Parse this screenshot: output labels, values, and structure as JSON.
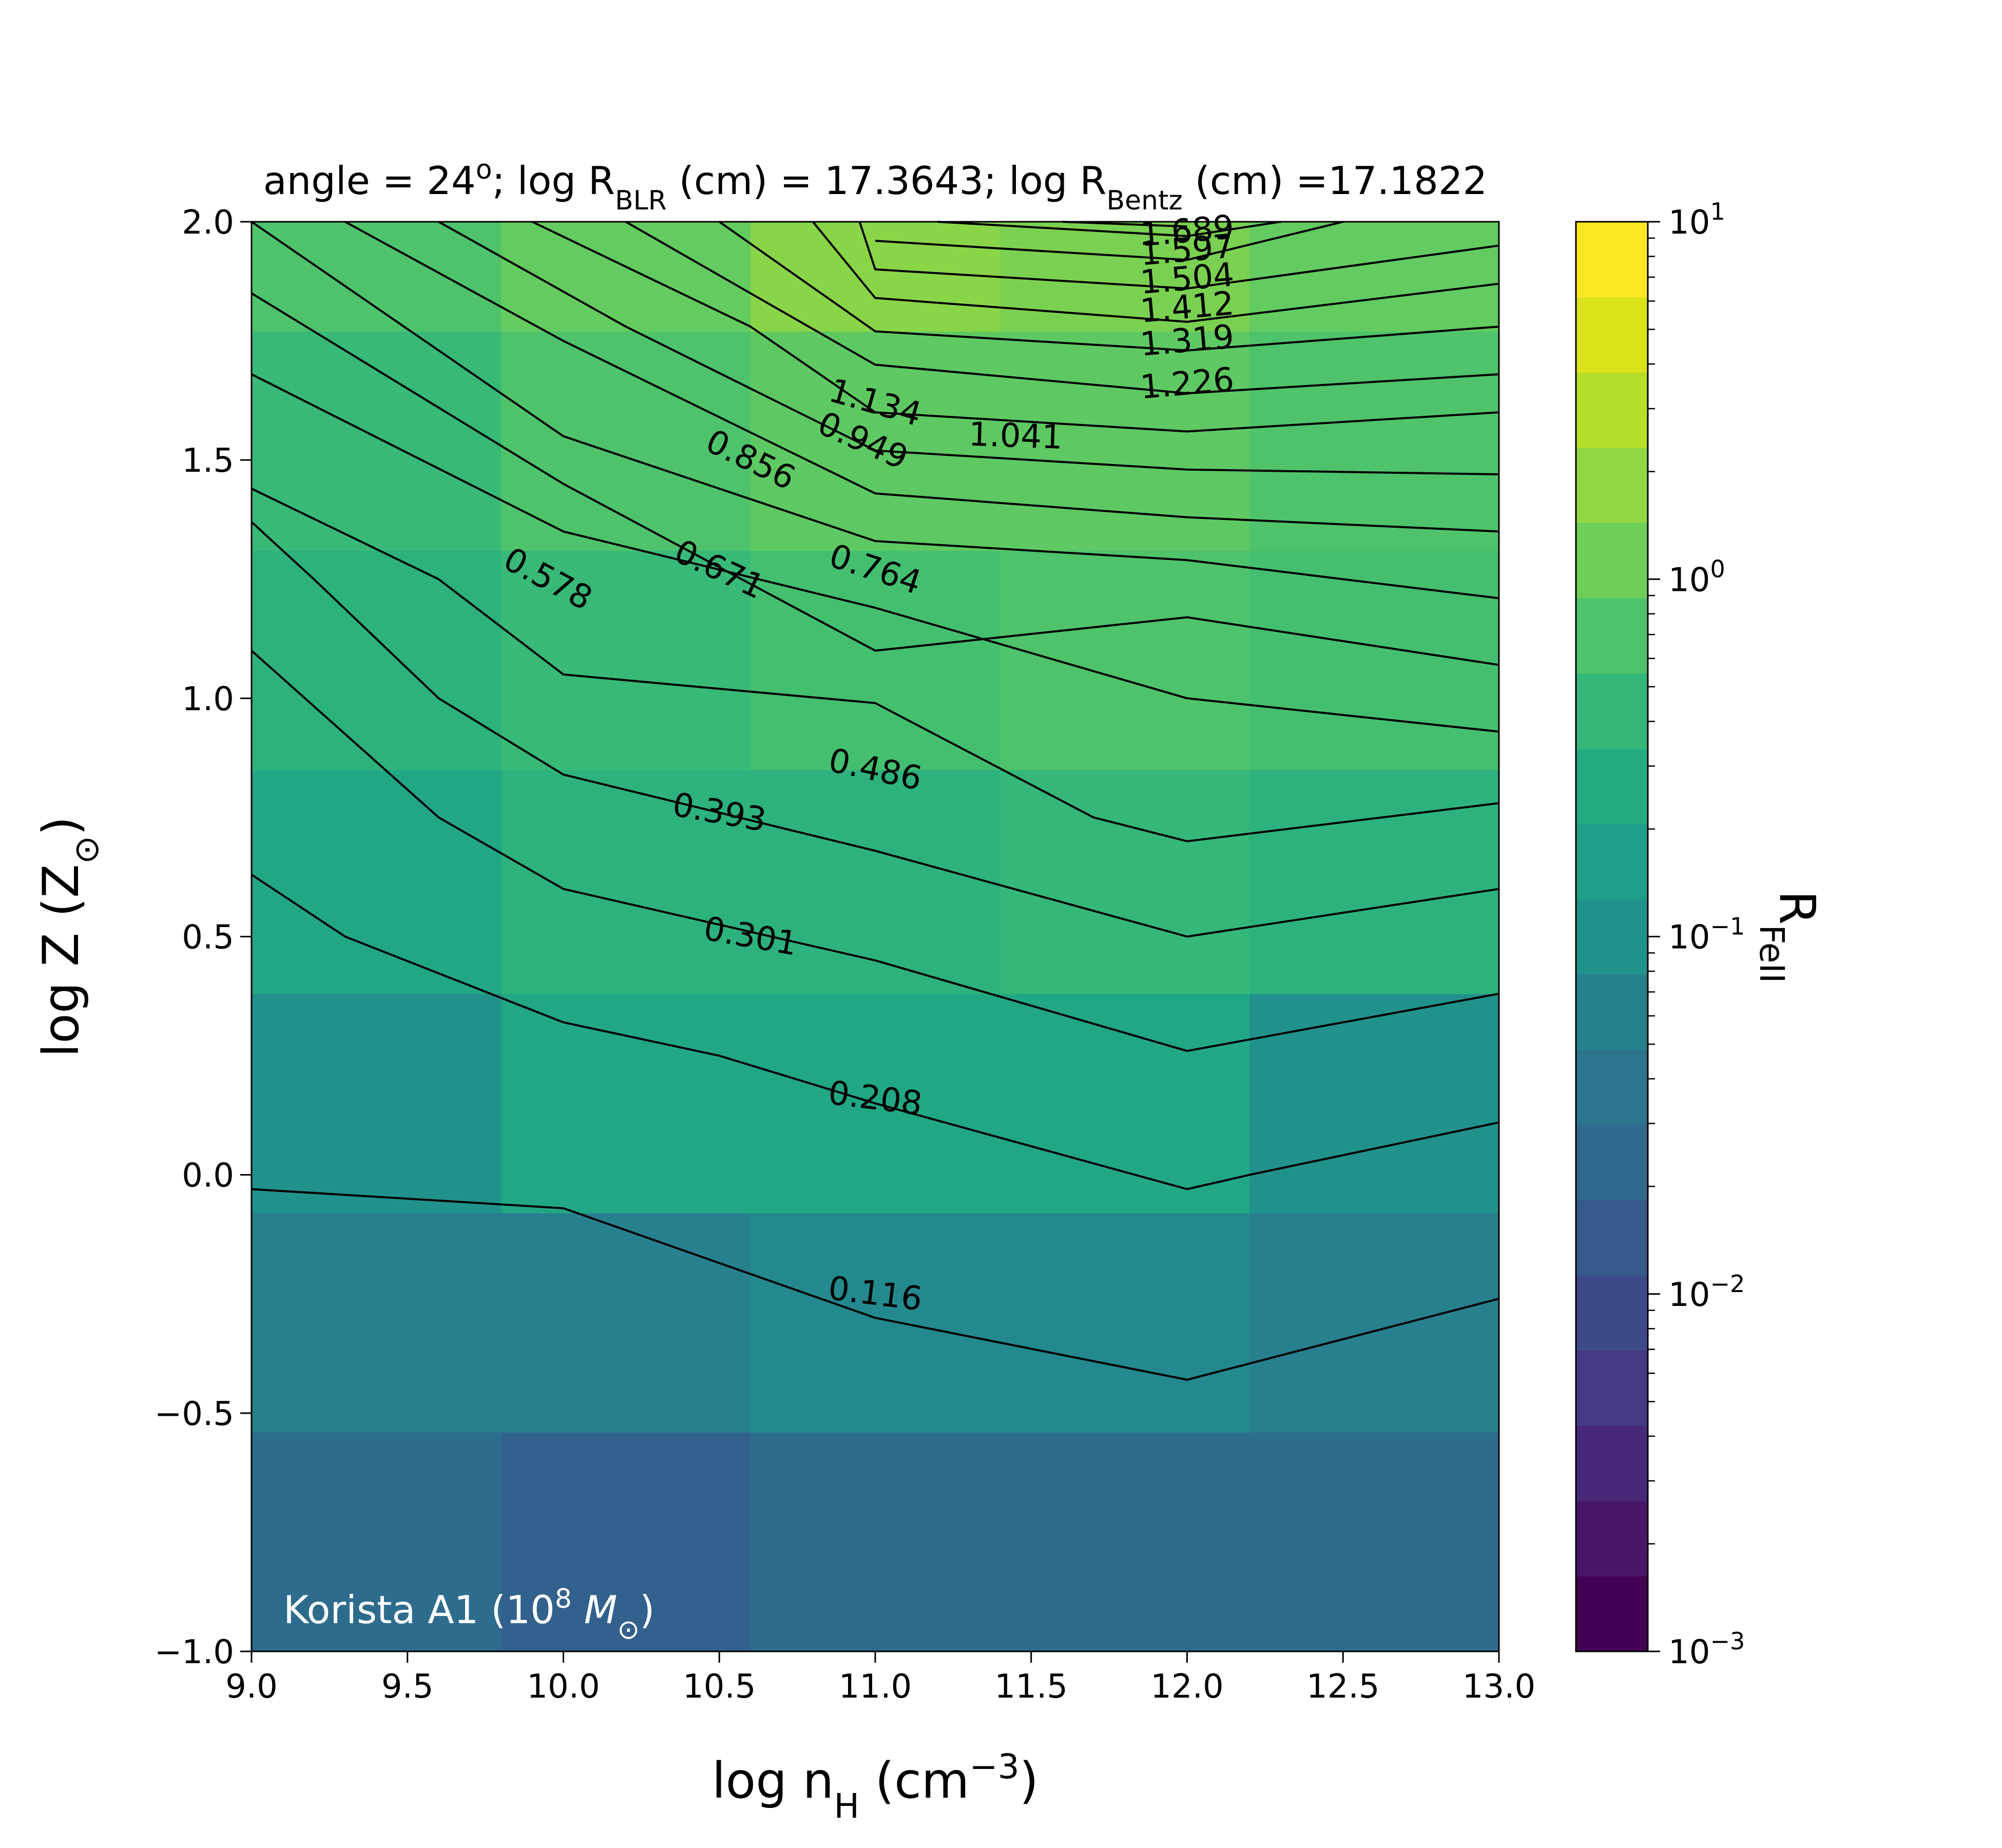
{
  "chart_data": {
    "type": "heatmap",
    "title_parts": [
      "angle = 24",
      "o",
      "; log R",
      "BLR",
      " (cm) = 17.3643; log R",
      "Bentz",
      " (cm) =17.1822"
    ],
    "xlabel_parts": [
      "log n",
      "H",
      " (cm",
      "−3",
      ")"
    ],
    "ylabel_parts": [
      "log Z (Z",
      "⊙",
      ")"
    ],
    "cbar_label_parts": [
      "R",
      "FeII"
    ],
    "annotation_parts": [
      "Korista A1 (10",
      "8",
      " M",
      "⊙",
      ")"
    ],
    "xlim": [
      9.0,
      13.0
    ],
    "ylim": [
      -1.0,
      2.0
    ],
    "xticks": [
      "9.0",
      "9.5",
      "10.0",
      "10.5",
      "11.0",
      "11.5",
      "12.0",
      "12.5",
      "13.0"
    ],
    "yticks": [
      "−1.0",
      "−0.5",
      "0.0",
      "0.5",
      "1.0",
      "1.5",
      "2.0"
    ],
    "colorbar": {
      "scale": "log",
      "range": [
        0.001,
        10
      ],
      "ticks": [
        {
          "base": "10",
          "exp": "−3"
        },
        {
          "base": "10",
          "exp": "−2"
        },
        {
          "base": "10",
          "exp": "−1"
        },
        {
          "base": "10",
          "exp": "0"
        },
        {
          "base": "10",
          "exp": "1"
        }
      ],
      "colors": [
        "#440154",
        "#481668",
        "#482878",
        "#443983",
        "#3e4989",
        "#375a8c",
        "#31688e",
        "#2b758e",
        "#26828e",
        "#21918c",
        "#1f9e89",
        "#25ab82",
        "#35b779",
        "#4ec36b",
        "#6ece58",
        "#90d743",
        "#b5de2b",
        "#dae319",
        "#fde725"
      ]
    },
    "grid_x": [
      9.0,
      9.8,
      10.6,
      11.4,
      12.2,
      13.0
    ],
    "grid_y": [
      -1.0,
      -0.54,
      -0.08,
      0.38,
      0.85,
      1.31,
      1.77,
      2.0
    ],
    "cells": [
      [
        "#2e6c8e",
        "#33618d",
        "#2e6c8e",
        "#2e6c8e",
        "#2e6c8e"
      ],
      [
        "#27808e",
        "#27808e",
        "#23898e",
        "#23898e",
        "#27808e"
      ],
      [
        "#21918c",
        "#22a785",
        "#22a785",
        "#22a785",
        "#21918c"
      ],
      [
        "#22a785",
        "#2db27d",
        "#2db27d",
        "#35b779",
        "#2db27d"
      ],
      [
        "#2db27d",
        "#38b977",
        "#44bf70",
        "#4ec36b",
        "#44bf70"
      ],
      [
        "#38b977",
        "#4ec36b",
        "#5ec962",
        "#5ec962",
        "#4ec36b"
      ],
      [
        "#4ec36b",
        "#63cb5f",
        "#89d548",
        "#7ad151",
        "#63cb5f"
      ]
    ],
    "contours": [
      {
        "label": "0.116",
        "x": [
          9.0,
          10.0,
          11.0,
          12.0,
          13.0
        ],
        "y": [
          -0.03,
          -0.07,
          -0.3,
          -0.43,
          -0.26
        ]
      },
      {
        "label": "0.208",
        "x": [
          9.0,
          9.3,
          10.0,
          10.5,
          11.0,
          12.0,
          12.2,
          13.0
        ],
        "y": [
          0.63,
          0.5,
          0.32,
          0.25,
          0.15,
          -0.03,
          0.0,
          0.11
        ]
      },
      {
        "label": "0.301",
        "x": [
          9.0,
          9.6,
          10.0,
          11.0,
          12.0,
          13.0
        ],
        "y": [
          1.1,
          0.75,
          0.6,
          0.45,
          0.26,
          0.38
        ]
      },
      {
        "label": "0.393",
        "x": [
          9.0,
          9.2,
          9.6,
          10.0,
          11.0,
          12.0,
          13.0
        ],
        "y": [
          1.37,
          1.25,
          1.0,
          0.84,
          0.68,
          0.5,
          0.6
        ]
      },
      {
        "label": "0.486",
        "x": [
          9.0,
          9.6,
          10.0,
          11.0,
          11.7,
          12.0,
          13.0
        ],
        "y": [
          1.44,
          1.25,
          1.05,
          0.99,
          0.75,
          0.7,
          0.78
        ]
      },
      {
        "label": "0.578",
        "x": [
          9.0,
          10.0,
          11.0,
          12.0,
          13.0
        ],
        "y": [
          1.68,
          1.35,
          1.19,
          1.0,
          0.93
        ]
      },
      {
        "label": "0.671",
        "x": [
          9.0,
          10.0,
          11.0,
          12.0,
          13.0
        ],
        "y": [
          1.85,
          1.45,
          1.1,
          1.17,
          1.07
        ]
      },
      {
        "label": "0.764",
        "x": [
          9.0,
          10.0,
          11.0,
          12.0,
          13.0
        ],
        "y": [
          2.0,
          1.55,
          1.33,
          1.29,
          1.21
        ]
      },
      {
        "label": "0.856",
        "x": [
          9.3,
          10.0,
          11.0,
          12.0,
          13.0
        ],
        "y": [
          2.0,
          1.75,
          1.43,
          1.38,
          1.35
        ]
      },
      {
        "label": "0.949",
        "x": [
          9.6,
          10.2,
          11.0,
          12.0,
          13.0
        ],
        "y": [
          2.0,
          1.78,
          1.52,
          1.48,
          1.47
        ]
      },
      {
        "label": "1.041",
        "x": [
          9.9,
          10.6,
          11.0,
          12.0,
          13.0
        ],
        "y": [
          2.0,
          1.78,
          1.6,
          1.56,
          1.6
        ]
      },
      {
        "label": "1.134",
        "x": [
          10.2,
          10.6,
          11.0,
          12.0,
          13.0
        ],
        "y": [
          2.0,
          1.85,
          1.7,
          1.64,
          1.68
        ]
      },
      {
        "label": "1.226",
        "x": [
          10.5,
          11.0,
          12.0,
          13.0
        ],
        "y": [
          2.0,
          1.77,
          1.73,
          1.78
        ]
      },
      {
        "label": "1.319",
        "x": [
          10.8,
          11.0,
          12.0,
          13.0
        ],
        "y": [
          2.0,
          1.84,
          1.79,
          1.87
        ]
      },
      {
        "label": "1.412",
        "x": [
          10.95,
          11.0,
          12.0,
          13.0
        ],
        "y": [
          2.0,
          1.9,
          1.86,
          1.95
        ]
      },
      {
        "label": "1.504",
        "x": [
          11.0,
          12.0,
          12.5
        ],
        "y": [
          1.96,
          1.92,
          2.0
        ]
      },
      {
        "label": "1.597",
        "x": [
          11.2,
          12.0,
          12.3
        ],
        "y": [
          2.0,
          1.97,
          2.0
        ]
      },
      {
        "label": "1.689",
        "x": [
          11.6,
          12.0
        ],
        "y": [
          2.0,
          1.99
        ]
      }
    ],
    "contour_labels": [
      {
        "text": "0.116",
        "x": 11.0,
        "y": -0.25,
        "angle": 7
      },
      {
        "text": "0.208",
        "x": 11.0,
        "y": 0.16,
        "angle": 7
      },
      {
        "text": "0.301",
        "x": 10.6,
        "y": 0.5,
        "angle": 10
      },
      {
        "text": "0.393",
        "x": 10.5,
        "y": 0.76,
        "angle": 10
      },
      {
        "text": "0.486",
        "x": 11.0,
        "y": 0.85,
        "angle": 12
      },
      {
        "text": "0.578",
        "x": 9.95,
        "y": 1.25,
        "angle": 28
      },
      {
        "text": "0.671",
        "x": 10.5,
        "y": 1.27,
        "angle": 25
      },
      {
        "text": "0.764",
        "x": 11.0,
        "y": 1.27,
        "angle": 18
      },
      {
        "text": "0.856",
        "x": 10.6,
        "y": 1.5,
        "angle": 26
      },
      {
        "text": "0.949",
        "x": 10.96,
        "y": 1.54,
        "angle": 24
      },
      {
        "text": "1.041",
        "x": 11.45,
        "y": 1.55,
        "angle": 2
      },
      {
        "text": "1.134",
        "x": 11.0,
        "y": 1.62,
        "angle": 16
      },
      {
        "text": "1.226",
        "x": 12.0,
        "y": 1.66,
        "angle": -5
      },
      {
        "text": "1.319",
        "x": 12.0,
        "y": 1.75,
        "angle": -5
      },
      {
        "text": "1.412",
        "x": 12.0,
        "y": 1.82,
        "angle": -5
      },
      {
        "text": "1.504",
        "x": 12.0,
        "y": 1.88,
        "angle": -5
      },
      {
        "text": "1.597",
        "x": 12.0,
        "y": 1.94,
        "angle": -5
      },
      {
        "text": "1.689",
        "x": 12.0,
        "y": 1.98,
        "angle": -5
      }
    ]
  }
}
